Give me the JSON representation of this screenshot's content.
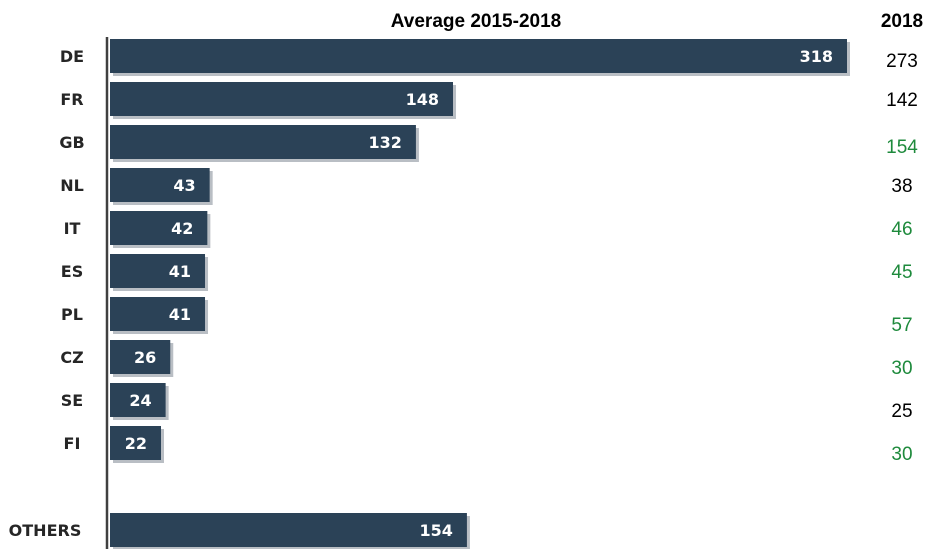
{
  "chart_data": {
    "type": "bar",
    "orientation": "horizontal",
    "title": "Average 2015-2018",
    "categories": [
      "DE",
      "FR",
      "GB",
      "NL",
      "IT",
      "ES",
      "PL",
      "CZ",
      "SE",
      "FI",
      "OTHERS"
    ],
    "values": [
      318,
      148,
      132,
      43,
      42,
      41,
      41,
      26,
      24,
      22,
      154
    ],
    "xlim": [
      0,
      330
    ],
    "grid": false,
    "legend": "none",
    "secondary_column": {
      "title": "2018",
      "values": [
        273,
        142,
        154,
        38,
        46,
        45,
        57,
        30,
        25,
        30
      ],
      "colors": [
        "#000000",
        "#000000",
        "#1e8a3c",
        "#000000",
        "#1e8a3c",
        "#1e8a3c",
        "#1e8a3c",
        "#1e8a3c",
        "#000000",
        "#1e8a3c"
      ]
    },
    "colors": {
      "bar": "#2b4257",
      "bar_shadow": "#b9bec4",
      "axis": "#404040"
    }
  }
}
